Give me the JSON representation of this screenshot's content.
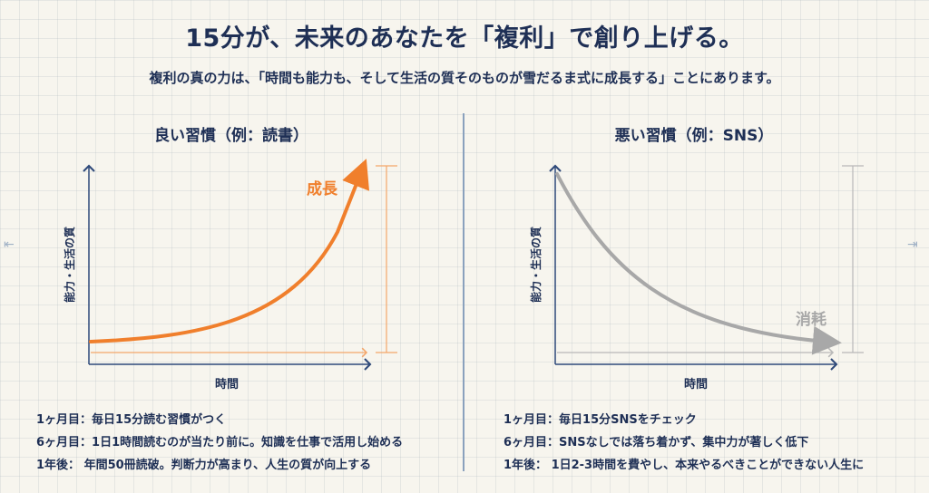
{
  "header": {
    "title": "15分が、未来のあなたを「複利」で創り上げる。",
    "subtitle": "複利の真の力は、「時間も能力も、そして生活の質そのものが雪だるま式に成長する」ことにあります。"
  },
  "colors": {
    "good": "#f07f2c",
    "bad": "#a8a8a8",
    "axis": "#2f4a7a",
    "text": "#1e2f55"
  },
  "panels": [
    {
      "title": "良い習慣（例：読書）",
      "ylabel": "能力・生活の質",
      "xlabel": "時間",
      "curve_label": "成長",
      "trend": "exponential-growth",
      "notes": [
        "1ヶ月目：毎日15分読む習慣がつく",
        "6ヶ月目：1日1時間読むのが当たり前に。知識を仕事で活用し始める",
        "1年後： 年間50冊読破。判断力が高まり、人生の質が向上する"
      ]
    },
    {
      "title": "悪い習慣（例：SNS）",
      "ylabel": "能力・生活の質",
      "xlabel": "時間",
      "curve_label": "消耗",
      "trend": "exponential-decay",
      "notes": [
        "1ヶ月目：毎日15分SNSをチェック",
        "6ヶ月目：SNSなしでは落ち着かず、集中力が著しく低下",
        "1年後： 1日2-3時間を費やし、本来やるべきことができない人生に"
      ]
    }
  ]
}
